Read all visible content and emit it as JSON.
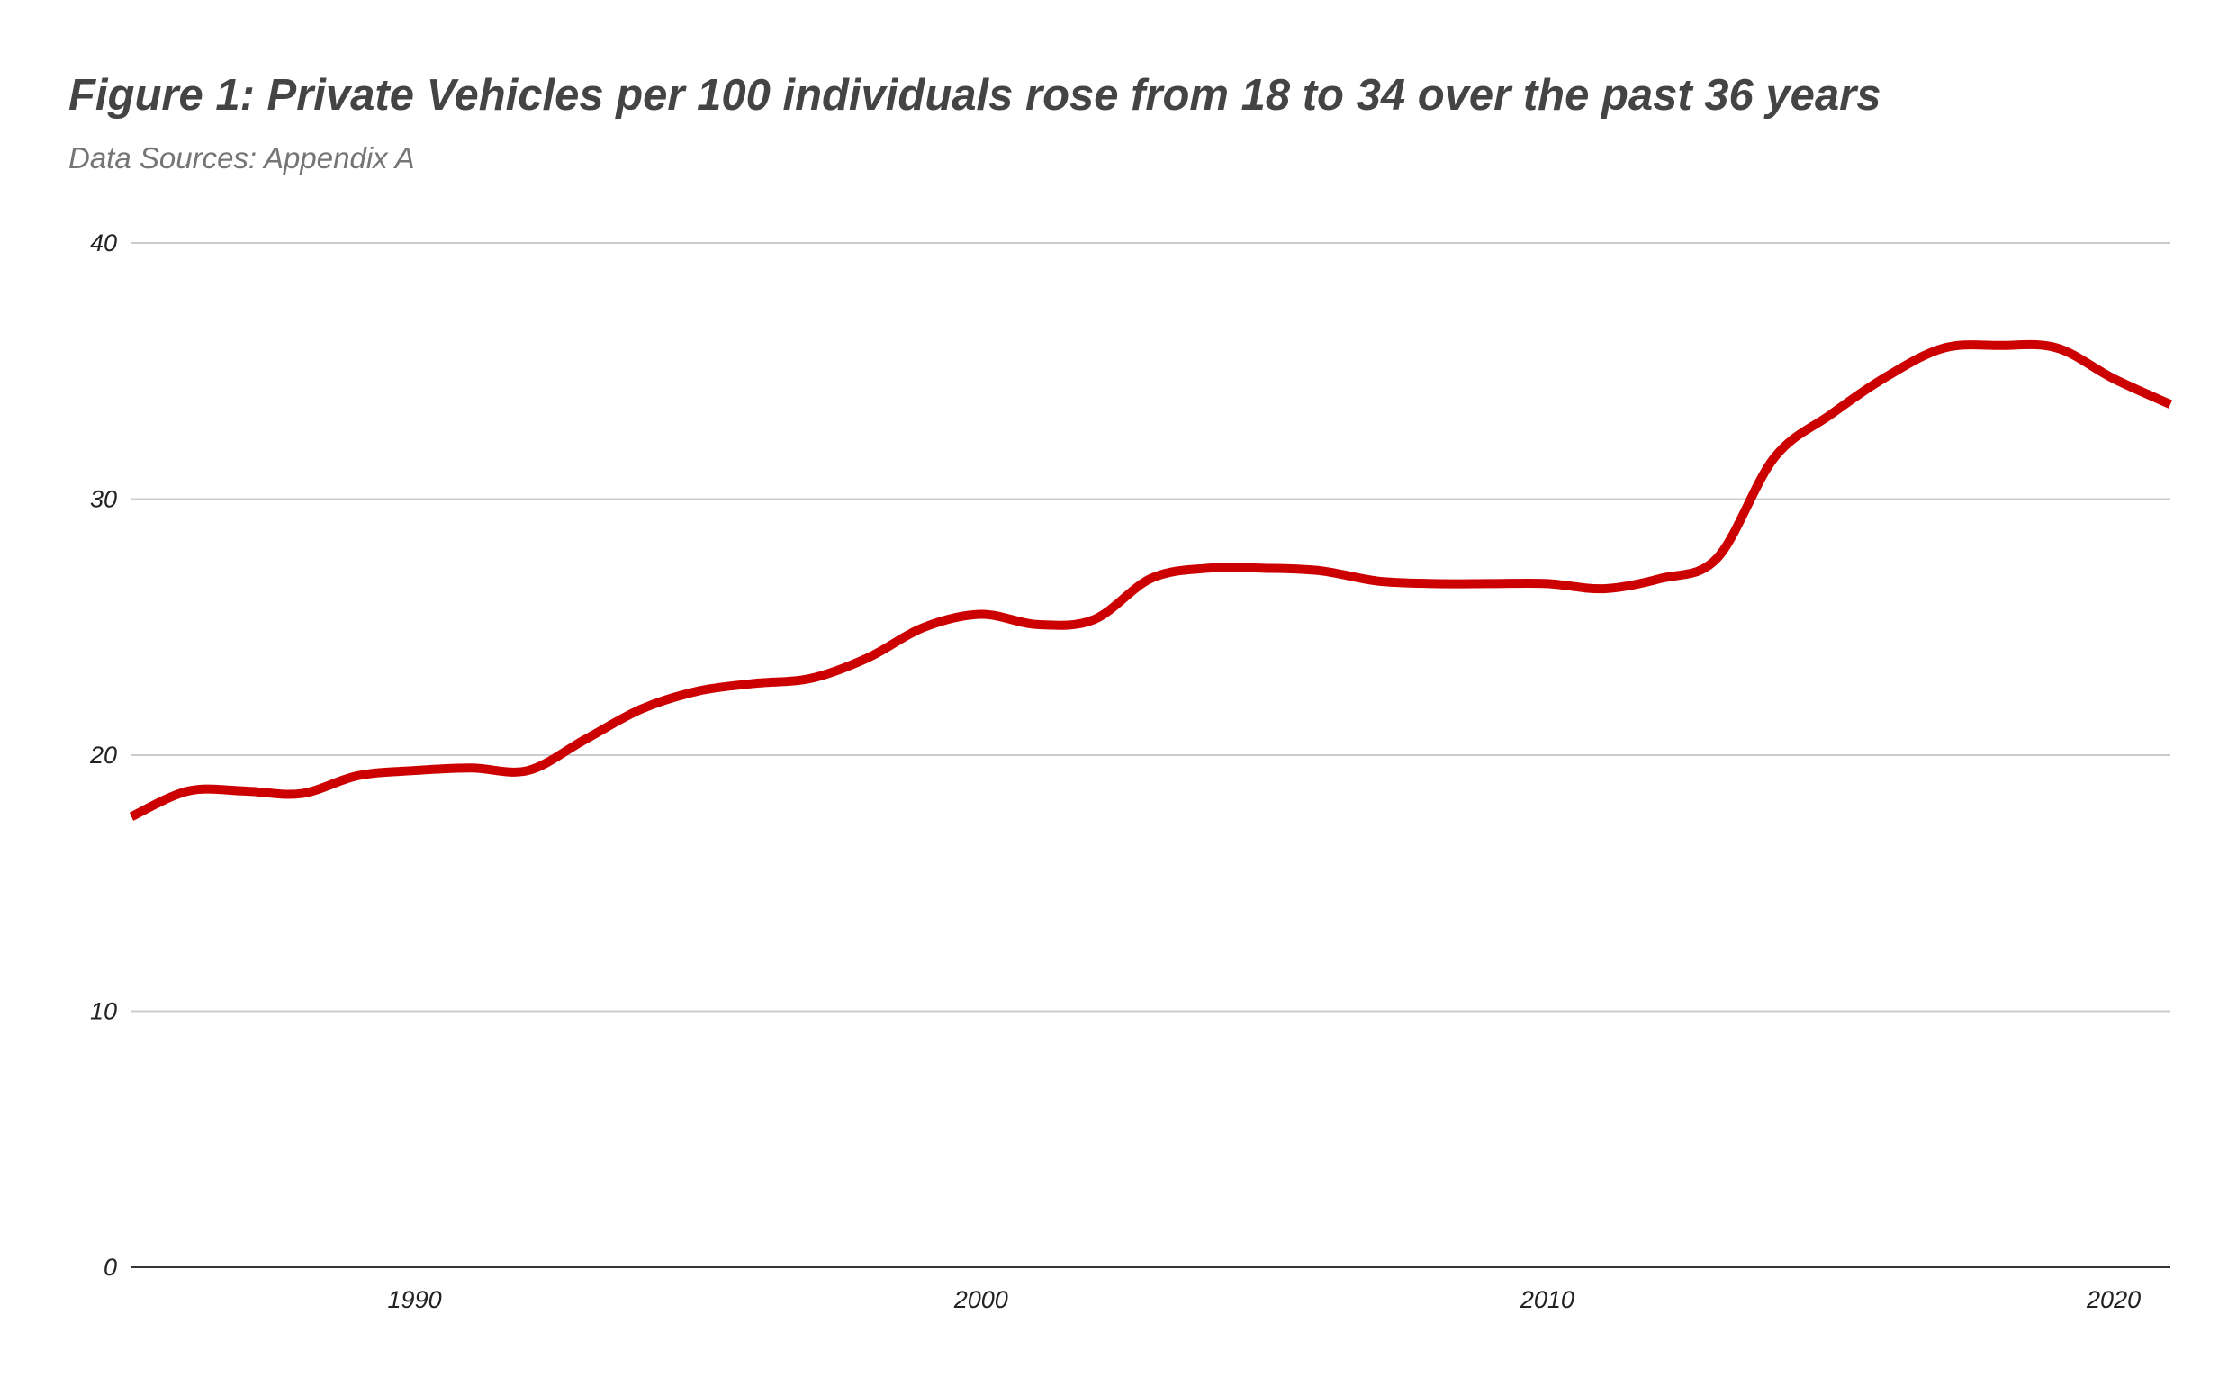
{
  "chart_data": {
    "type": "line",
    "title": "Figure 1: Private Vehicles per 100 individuals rose from 18 to 34 over the past 36 years",
    "subtitle": "Data Sources: Appendix A",
    "xlabel": "",
    "ylabel": "",
    "xlim": [
      1985,
      2021
    ],
    "ylim": [
      0,
      40
    ],
    "x_ticks": [
      "1990",
      "2000",
      "2010",
      "2020"
    ],
    "y_ticks": [
      "0",
      "10",
      "20",
      "30",
      "40"
    ],
    "grid": true,
    "smooth": true,
    "line_color": "#cc0000",
    "x": [
      1985,
      1986,
      1987,
      1988,
      1989,
      1990,
      1991,
      1992,
      1993,
      1994,
      1995,
      1996,
      1997,
      1998,
      1999,
      2000,
      2001,
      2002,
      2003,
      2004,
      2005,
      2006,
      2007,
      2008,
      2009,
      2010,
      2011,
      2012,
      2013,
      2014,
      2015,
      2016,
      2017,
      2018,
      2019,
      2020,
      2021
    ],
    "series": [
      {
        "values": [
          17.6,
          18.6,
          18.6,
          18.5,
          19.2,
          19.4,
          19.5,
          19.4,
          20.6,
          21.8,
          22.5,
          22.8,
          23.0,
          23.8,
          25.0,
          25.5,
          25.1,
          25.3,
          26.9,
          27.3,
          27.3,
          27.2,
          26.8,
          26.7,
          26.7,
          26.7,
          26.5,
          26.9,
          27.7,
          31.6,
          33.3,
          34.8,
          35.9,
          36.0,
          35.9,
          34.7,
          33.7
        ]
      }
    ]
  }
}
